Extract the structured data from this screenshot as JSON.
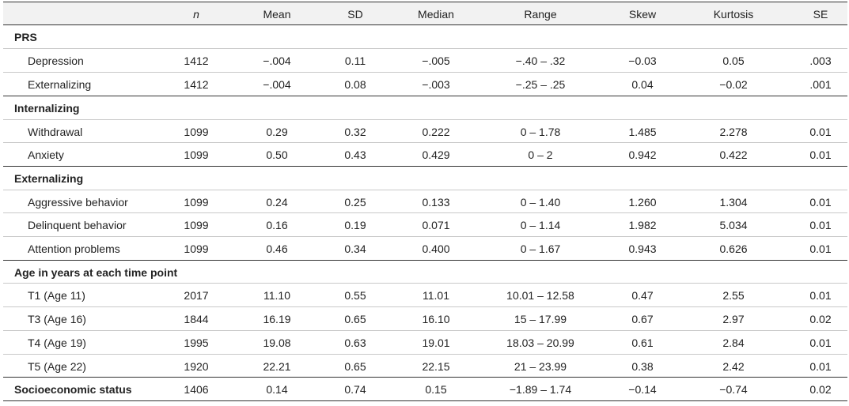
{
  "table": {
    "header": [
      "n",
      "Mean",
      "SD",
      "Median",
      "Range",
      "Skew",
      "Kurtosis",
      "SE"
    ],
    "groups": [
      {
        "title": "PRS",
        "rows": [
          [
            "Depression",
            "1412",
            "−.004",
            "0.11",
            "−.005",
            "−.40 – .32",
            "−0.03",
            "0.05",
            ".003"
          ],
          [
            "Externalizing",
            "1412",
            "−.004",
            "0.08",
            "−.003",
            "−.25 – .25",
            "0.04",
            "−0.02",
            ".001"
          ]
        ]
      },
      {
        "title": "Internalizing",
        "rows": [
          [
            "Withdrawal",
            "1099",
            "0.29",
            "0.32",
            "0.222",
            "0 – 1.78",
            "1.485",
            "2.278",
            "0.01"
          ],
          [
            "Anxiety",
            "1099",
            "0.50",
            "0.43",
            "0.429",
            "0 – 2",
            "0.942",
            "0.422",
            "0.01"
          ]
        ]
      },
      {
        "title": "Externalizing",
        "rows": [
          [
            "Aggressive behavior",
            "1099",
            "0.24",
            "0.25",
            "0.133",
            "0 – 1.40",
            "1.260",
            "1.304",
            "0.01"
          ],
          [
            "Delinquent behavior",
            "1099",
            "0.16",
            "0.19",
            "0.071",
            "0 – 1.14",
            "1.982",
            "5.034",
            "0.01"
          ],
          [
            "Attention problems",
            "1099",
            "0.46",
            "0.34",
            "0.400",
            "0 – 1.67",
            "0.943",
            "0.626",
            "0.01"
          ]
        ]
      },
      {
        "title": "Age in years at each time point",
        "rows": [
          [
            "T1 (Age 11)",
            "2017",
            "11.10",
            "0.55",
            "11.01",
            "10.01 – 12.58",
            "0.47",
            "2.55",
            "0.01"
          ],
          [
            "T3 (Age 16)",
            "1844",
            "16.19",
            "0.65",
            "16.10",
            "15 – 17.99",
            "0.67",
            "2.97",
            "0.02"
          ],
          [
            "T4 (Age 19)",
            "1995",
            "19.08",
            "0.63",
            "19.01",
            "18.03 – 20.99",
            "0.61",
            "2.84",
            "0.01"
          ],
          [
            "T5 (Age 22)",
            "1920",
            "22.21",
            "0.65",
            "22.15",
            "21 – 23.99",
            "0.38",
            "2.42",
            "0.01"
          ]
        ]
      },
      {
        "title": "Socioeconomic status",
        "values": [
          "1406",
          "0.14",
          "0.74",
          "0.15",
          "−1.89 – 1.74",
          "−0.14",
          "−0.74",
          "0.02"
        ]
      }
    ]
  }
}
